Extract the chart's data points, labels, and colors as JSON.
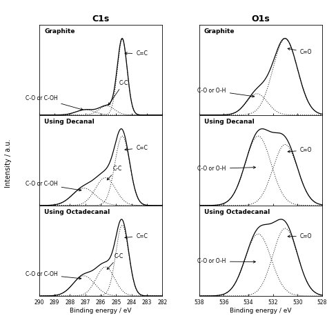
{
  "col1_title": "C1s",
  "col2_title": "O1s",
  "row_labels": [
    "Graphite",
    "Using Decanal",
    "Using Octadecanal"
  ],
  "ylabel": "Intensity / a.u.",
  "xlabel_c1s": "Binding energy / eV",
  "xlabel_o1s": "Binding energy / eV",
  "c1s_xlim": [
    290,
    282
  ],
  "c1s_xticks": [
    290,
    289,
    288,
    287,
    286,
    285,
    284,
    283,
    282
  ],
  "o1s_xlim": [
    538,
    528
  ],
  "o1s_xticks": [
    538,
    536,
    534,
    532,
    530,
    528
  ],
  "c1s_peaks": {
    "graphite": {
      "cc2_mu": 284.6,
      "cc2_sig": 0.32,
      "cc2_amp": 1.0,
      "cc1_mu": 285.6,
      "cc1_sig": 0.5,
      "cc1_amp": 0.12,
      "co_mu": 287.0,
      "co_sig": 0.6,
      "co_amp": 0.07
    },
    "decanal": {
      "cc2_mu": 284.6,
      "cc2_sig": 0.48,
      "cc2_amp": 0.8,
      "cc1_mu": 285.7,
      "cc1_sig": 0.65,
      "cc1_amp": 0.32,
      "co_mu": 287.1,
      "co_sig": 0.75,
      "co_amp": 0.2
    },
    "octadecanal": {
      "cc2_mu": 284.6,
      "cc2_sig": 0.42,
      "cc2_amp": 0.88,
      "cc1_mu": 285.7,
      "cc1_sig": 0.6,
      "cc1_amp": 0.36,
      "co_mu": 287.1,
      "co_sig": 0.7,
      "co_amp": 0.25
    }
  },
  "o1s_peaks": {
    "graphite": {
      "co2_mu": 531.0,
      "co2_sig": 1.0,
      "co2_amp": 1.0,
      "coo_mu": 533.3,
      "coo_sig": 0.85,
      "coo_amp": 0.28
    },
    "decanal": {
      "co2_mu": 531.0,
      "co2_sig": 1.0,
      "co2_amp": 0.72,
      "coo_mu": 533.2,
      "coo_sig": 1.05,
      "coo_amp": 0.82
    },
    "octadecanal": {
      "co2_mu": 531.0,
      "co2_sig": 1.0,
      "co2_amp": 0.85,
      "coo_mu": 533.2,
      "coo_sig": 1.05,
      "coo_amp": 0.78
    }
  }
}
